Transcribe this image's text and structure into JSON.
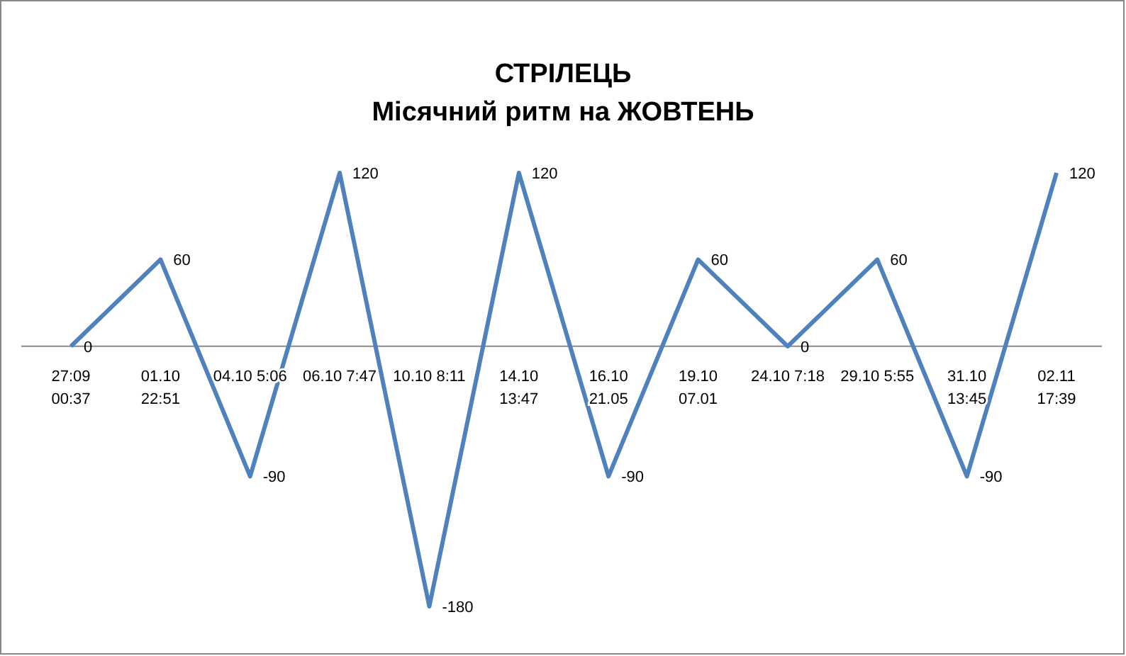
{
  "chart_data": {
    "type": "line",
    "title": "СТРІЛЕЦЬ",
    "subtitle": "Місячний ритм на ЖОВТЕНЬ",
    "categories": [
      "27:09 00:37",
      "01.10 22:51",
      "04.10 5:06",
      "06.10 7:47",
      "10.10 8:11",
      "14.10 13:47",
      "16.10 21.05",
      "19.10 07.01",
      "24.10 7:18",
      "29.10 5:55",
      "31.10 13:45",
      "02.11 17:39"
    ],
    "series": [
      {
        "color": "#4f81bd",
        "values": [
          0,
          60,
          -90,
          120,
          -180,
          120,
          -90,
          60,
          0,
          60,
          -90,
          120
        ]
      }
    ],
    "data_labels": true,
    "marker": "none",
    "line_style": "solid"
  }
}
